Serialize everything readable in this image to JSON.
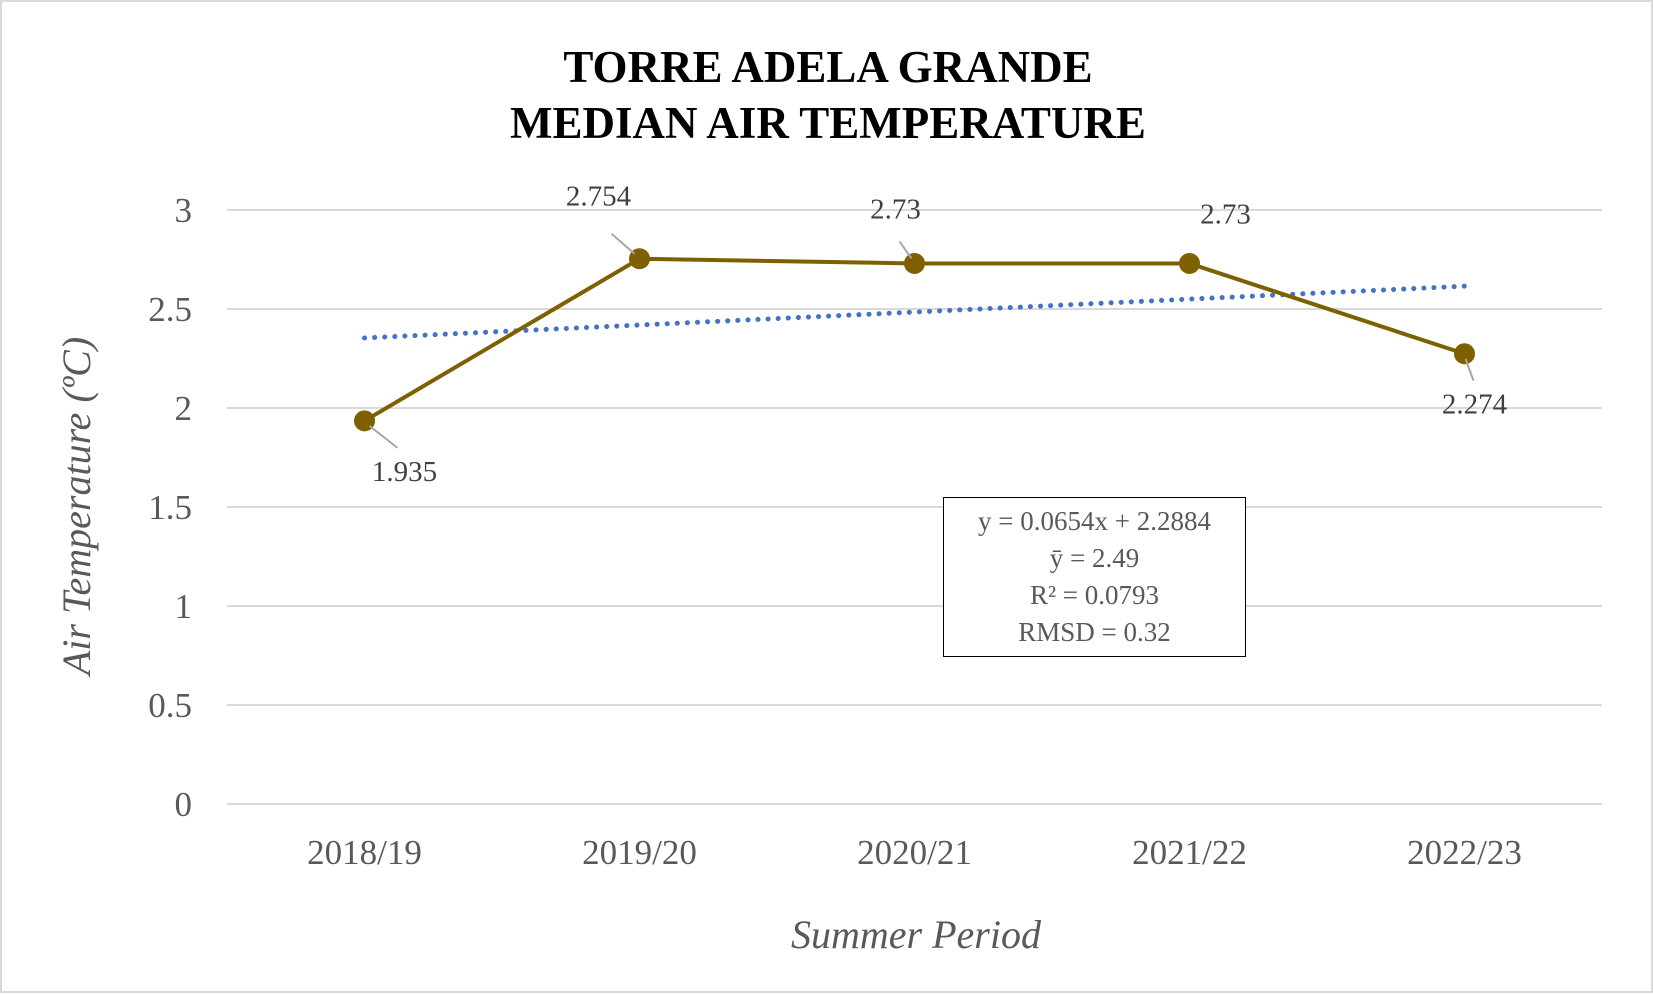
{
  "chart_data": {
    "type": "line",
    "title_lines": [
      "TORRE ADELA GRANDE",
      "MEDIAN AIR TEMPERATURE"
    ],
    "xlabel": "Summer Period",
    "ylabel": "Air Temperature (ºC)",
    "categories": [
      "2018/19",
      "2019/20",
      "2020/21",
      "2021/22",
      "2022/23"
    ],
    "series": [
      {
        "values": [
          1.935,
          2.754,
          2.73,
          2.73,
          2.274
        ],
        "data_labels": [
          "1.935",
          "2.754",
          "2.73",
          "2.73",
          "2.274"
        ],
        "color": "#7f6000"
      }
    ],
    "trendline": {
      "type": "linear",
      "slope": 0.0654,
      "intercept": 2.2884,
      "color": "#4472c4",
      "style": "dotted"
    },
    "ylim": [
      0,
      3
    ],
    "yticks": [
      "0",
      "0.5",
      "1",
      "1.5",
      "2",
      "2.5",
      "3"
    ],
    "grid": true,
    "legend": "none",
    "stats_box": {
      "equation": "y = 0.0654x + 2.2884",
      "mean": "ȳ = 2.49",
      "r2": "R² = 0.0793",
      "rmsd": "RMSD = 0.32"
    }
  }
}
